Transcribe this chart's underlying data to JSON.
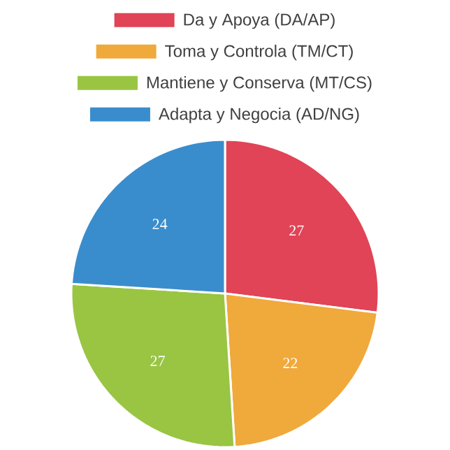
{
  "chart_data": {
    "type": "pie",
    "categories": [
      "Da y Apoya (DA/AP)",
      "Toma y Controla (TM/CT)",
      "Mantiene y Conserva (MT/CS)",
      "Adapta y Negocia (AD/NG)"
    ],
    "values": [
      27,
      22,
      27,
      24
    ],
    "colors": [
      "#e04456",
      "#f0a93b",
      "#99c543",
      "#3a8dcc"
    ],
    "data_labels": true,
    "legend": "top"
  }
}
